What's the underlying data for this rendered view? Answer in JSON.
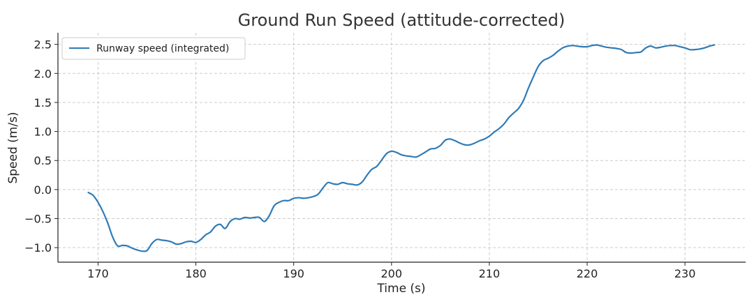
{
  "chart_data": {
    "type": "line",
    "title": "Ground Run Speed (attitude-corrected)",
    "xlabel": "Time (s)",
    "ylabel": "Speed (m/s)",
    "xlim": [
      165.9,
      236.2
    ],
    "ylim": [
      -1.25,
      2.7
    ],
    "xticks": [
      170,
      180,
      190,
      200,
      210,
      220,
      230
    ],
    "yticks": [
      -1.0,
      -0.5,
      0.0,
      0.5,
      1.0,
      1.5,
      2.0,
      2.5
    ],
    "xtick_labels": [
      "170",
      "180",
      "190",
      "200",
      "210",
      "220",
      "230"
    ],
    "ytick_labels": [
      "−1.0",
      "−0.5",
      "0.0",
      "0.5",
      "1.0",
      "1.5",
      "2.0",
      "2.5"
    ],
    "grid": true,
    "legend_position": "top-left",
    "series": [
      {
        "name": "Runway speed (integrated)",
        "color": "#2f7bb6",
        "x": [
          169.0,
          169.5,
          170.0,
          170.5,
          171.0,
          171.5,
          172.0,
          172.5,
          173.0,
          173.5,
          174.0,
          174.5,
          175.0,
          175.5,
          176.0,
          176.5,
          177.0,
          177.5,
          178.0,
          178.5,
          179.0,
          179.5,
          180.0,
          180.5,
          181.0,
          181.5,
          182.0,
          182.5,
          183.0,
          183.5,
          184.0,
          184.5,
          185.0,
          185.5,
          186.0,
          186.5,
          187.0,
          187.5,
          188.0,
          188.5,
          189.0,
          189.5,
          190.0,
          190.5,
          191.0,
          191.5,
          192.0,
          192.5,
          193.0,
          193.5,
          194.0,
          194.5,
          195.0,
          195.5,
          196.0,
          196.5,
          197.0,
          197.5,
          198.0,
          198.5,
          199.0,
          199.5,
          200.0,
          200.5,
          201.0,
          201.5,
          202.0,
          202.5,
          203.0,
          203.5,
          204.0,
          204.5,
          205.0,
          205.5,
          206.0,
          206.5,
          207.0,
          207.5,
          208.0,
          208.5,
          209.0,
          209.5,
          210.0,
          210.5,
          211.0,
          211.5,
          212.0,
          212.5,
          213.0,
          213.5,
          214.0,
          214.5,
          215.0,
          215.5,
          216.0,
          216.5,
          217.0,
          217.5,
          218.0,
          218.5,
          219.0,
          219.5,
          220.0,
          220.5,
          221.0,
          221.5,
          222.0,
          222.5,
          223.0,
          223.5,
          224.0,
          224.5,
          225.0,
          225.5,
          226.0,
          226.5,
          227.0,
          227.5,
          228.0,
          228.5,
          229.0,
          229.5,
          230.0,
          230.5,
          231.0,
          231.5,
          232.0,
          232.5,
          233.0
        ],
        "y": [
          -0.05,
          -0.1,
          -0.22,
          -0.38,
          -0.58,
          -0.82,
          -0.97,
          -0.96,
          -0.97,
          -1.01,
          -1.04,
          -1.06,
          -1.05,
          -0.93,
          -0.86,
          -0.87,
          -0.88,
          -0.9,
          -0.94,
          -0.93,
          -0.9,
          -0.89,
          -0.91,
          -0.86,
          -0.78,
          -0.73,
          -0.63,
          -0.6,
          -0.67,
          -0.55,
          -0.5,
          -0.51,
          -0.48,
          -0.49,
          -0.48,
          -0.48,
          -0.55,
          -0.45,
          -0.28,
          -0.22,
          -0.19,
          -0.19,
          -0.15,
          -0.14,
          -0.15,
          -0.14,
          -0.12,
          -0.08,
          0.03,
          0.12,
          0.1,
          0.09,
          0.12,
          0.1,
          0.09,
          0.08,
          0.13,
          0.25,
          0.35,
          0.4,
          0.51,
          0.62,
          0.66,
          0.64,
          0.6,
          0.58,
          0.57,
          0.56,
          0.6,
          0.65,
          0.7,
          0.71,
          0.76,
          0.85,
          0.87,
          0.84,
          0.8,
          0.77,
          0.77,
          0.8,
          0.84,
          0.87,
          0.92,
          0.99,
          1.05,
          1.13,
          1.24,
          1.32,
          1.4,
          1.54,
          1.75,
          1.94,
          2.12,
          2.22,
          2.26,
          2.31,
          2.38,
          2.44,
          2.47,
          2.48,
          2.47,
          2.46,
          2.46,
          2.48,
          2.49,
          2.47,
          2.45,
          2.44,
          2.43,
          2.41,
          2.36,
          2.35,
          2.36,
          2.37,
          2.44,
          2.47,
          2.44,
          2.45,
          2.47,
          2.48,
          2.48,
          2.46,
          2.44,
          2.41,
          2.41,
          2.42,
          2.44,
          2.47,
          2.49
        ]
      }
    ]
  }
}
